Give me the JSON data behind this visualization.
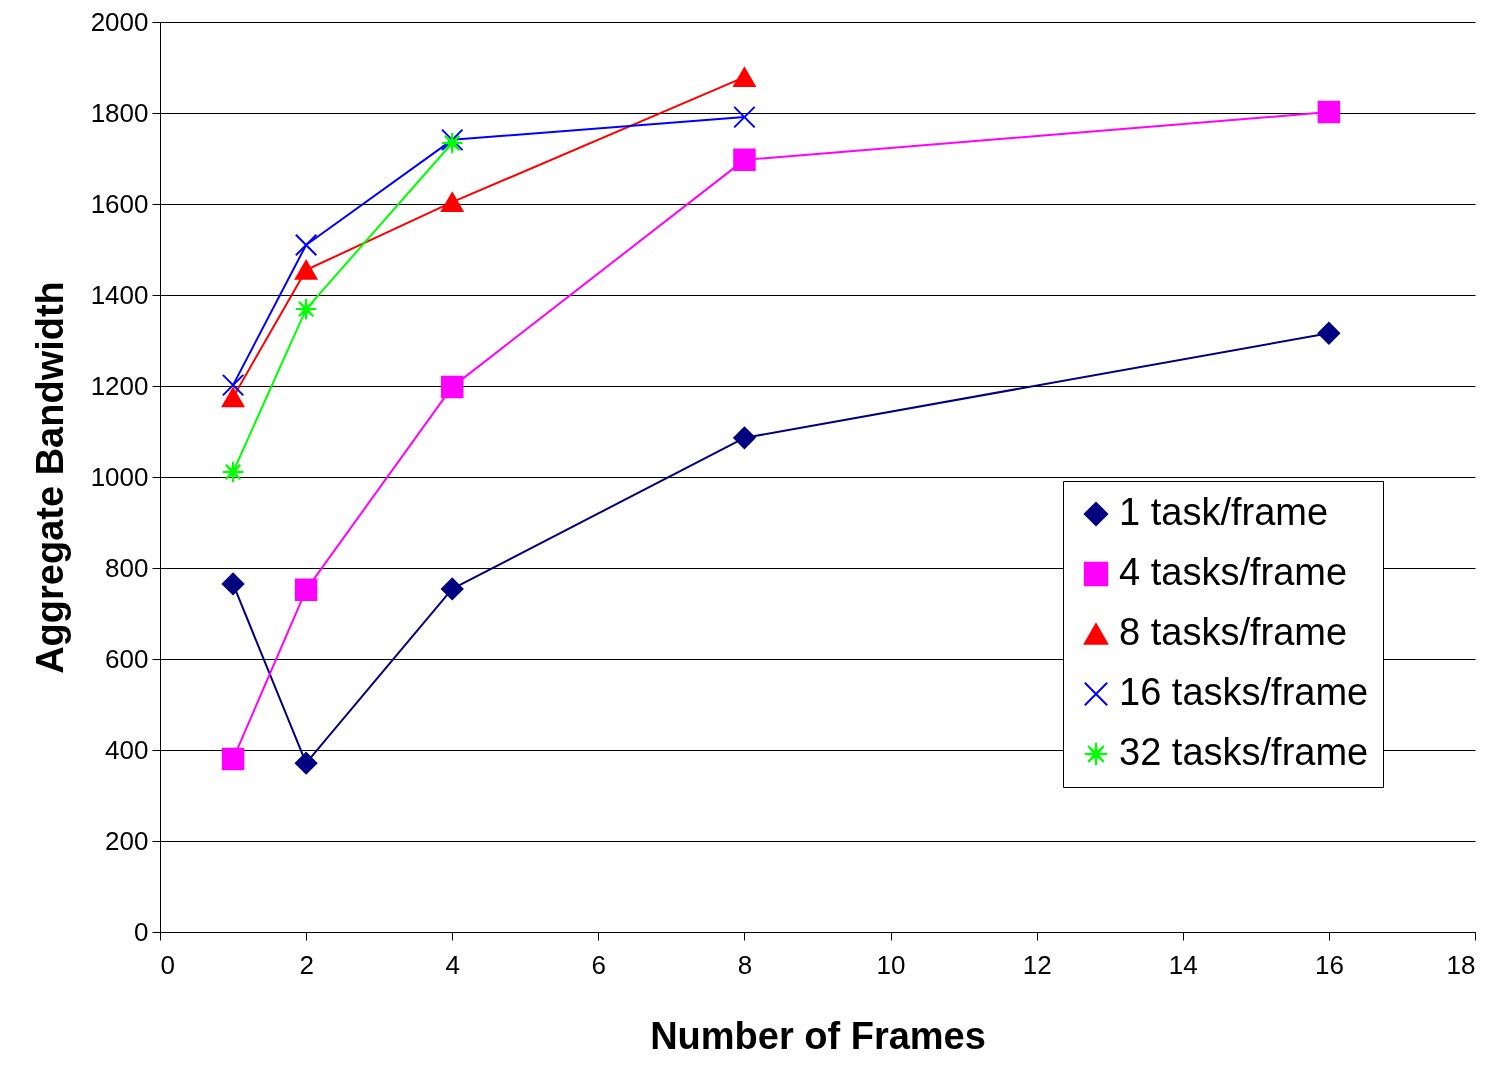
{
  "chart_data": {
    "type": "line",
    "xlabel": "Number of Frames",
    "ylabel": "Aggregate Bandwidth",
    "xlim": [
      0,
      18
    ],
    "xticks": [
      0,
      2,
      4,
      6,
      8,
      10,
      12,
      14,
      16,
      18
    ],
    "ylim": [
      0,
      2000
    ],
    "yticks": [
      0,
      200,
      400,
      600,
      800,
      1000,
      1200,
      1400,
      1600,
      1800,
      2000
    ],
    "grid": "y",
    "legend": "right",
    "series": [
      {
        "name": "1 task/frame",
        "color": "#000080",
        "marker": "diamond",
        "x": [
          1,
          2,
          4,
          8,
          16
        ],
        "values": [
          765,
          371,
          754,
          1086,
          1316
        ]
      },
      {
        "name": "4 tasks/frame",
        "color": "#ff00ff",
        "marker": "square",
        "x": [
          1,
          2,
          4,
          8,
          16
        ],
        "values": [
          380,
          752,
          1198,
          1697,
          1802
        ]
      },
      {
        "name": "8 tasks/frame",
        "color": "#ff0000",
        "marker": "triangle",
        "x": [
          1,
          2,
          4,
          8
        ],
        "values": [
          1175,
          1455,
          1604,
          1879
        ]
      },
      {
        "name": "16 tasks/frame",
        "color": "#0000ff",
        "marker": "cross",
        "x": [
          1,
          2,
          4,
          8
        ],
        "values": [
          1202,
          1510,
          1741,
          1791
        ]
      },
      {
        "name": "32 tasks/frame",
        "color": "#00ff00",
        "marker": "star",
        "x": [
          1,
          2,
          4
        ],
        "values": [
          1011,
          1369,
          1734
        ]
      }
    ]
  }
}
